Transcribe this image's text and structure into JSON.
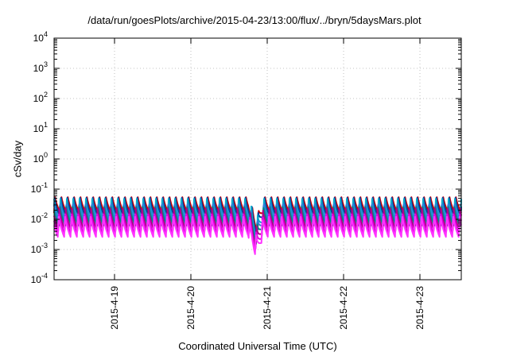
{
  "chart_data": {
    "type": "line",
    "title": "/data/run/goesPlots/archive/2015-04-23/13:00/flux/../bryn/5daysMars.plot",
    "xlabel": "Coordinated Universal Time (UTC)",
    "ylabel": "cSv/day",
    "yscale": "log",
    "ylim": [
      0.0001,
      10000
    ],
    "y_ticks": [
      {
        "value": 0.0001,
        "base": "10",
        "exp": "-4"
      },
      {
        "value": 0.001,
        "base": "10",
        "exp": "-3"
      },
      {
        "value": 0.01,
        "base": "10",
        "exp": "-2"
      },
      {
        "value": 0.1,
        "base": "10",
        "exp": "-1"
      },
      {
        "value": 1,
        "base": "10",
        "exp": "0"
      },
      {
        "value": 10,
        "base": "10",
        "exp": "1"
      },
      {
        "value": 100,
        "base": "10",
        "exp": "2"
      },
      {
        "value": 1000,
        "base": "10",
        "exp": "3"
      },
      {
        "value": 10000,
        "base": "10",
        "exp": "4"
      }
    ],
    "xlim": [
      "2015-04-18 05:00",
      "2015-04-23 13:00"
    ],
    "x_ticks": [
      {
        "value": "2015-04-19",
        "label": "2015-4-19"
      },
      {
        "value": "2015-04-20",
        "label": "2015-4-20"
      },
      {
        "value": "2015-04-21",
        "label": "2015-4-21"
      },
      {
        "value": "2015-04-22",
        "label": "2015-4-22"
      },
      {
        "value": "2015-04-23",
        "label": "2015-4-23"
      }
    ],
    "grid": true,
    "orbit_period_hours": 2.0,
    "dropout": {
      "start": "2015-04-20 18:00",
      "end": "2015-04-20 23:00"
    },
    "series": [
      {
        "color": "#cc0000",
        "peak": 0.07,
        "trough": 0.016
      },
      {
        "color": "#0a3a9c",
        "peak": 0.062,
        "trough": 0.012
      },
      {
        "color": "#00a9c9",
        "peak": 0.05,
        "trough": 0.0085
      },
      {
        "color": "#2f7fd9",
        "peak": 0.045,
        "trough": 0.0072
      },
      {
        "color": "#008b80",
        "peak": 0.032,
        "trough": 0.006
      },
      {
        "color": "#b0008a",
        "peak": 0.025,
        "trough": 0.0045
      },
      {
        "color": "#e000e0",
        "peak": 0.02,
        "trough": 0.0033
      },
      {
        "color": "#ff33ff",
        "peak": 0.016,
        "trough": 0.0026
      }
    ]
  }
}
